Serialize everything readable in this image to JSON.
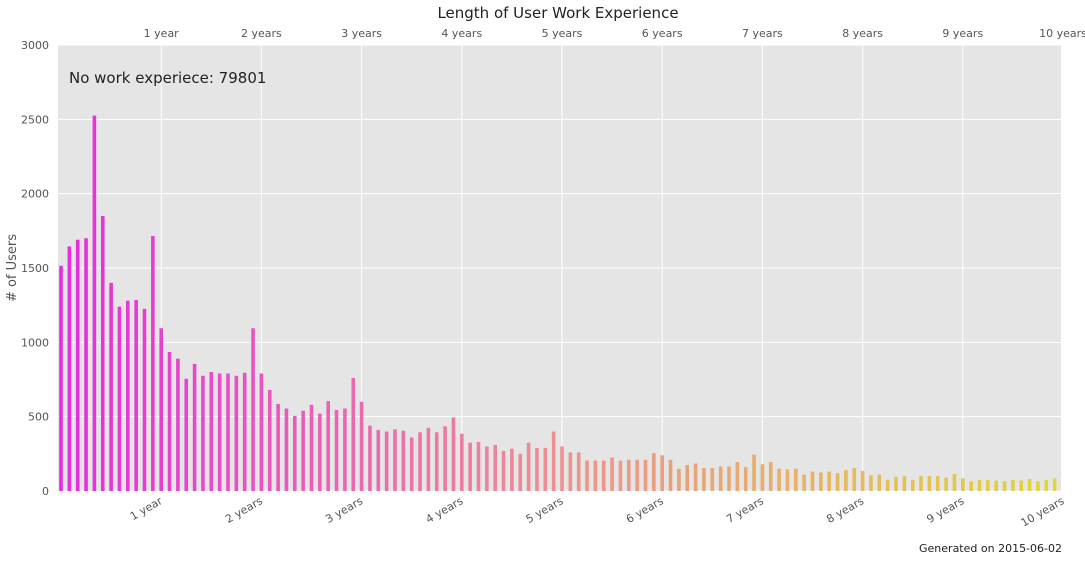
{
  "chart_data": {
    "type": "bar",
    "title": "Length of User Work Experience",
    "ylabel": "# of Users",
    "xlabel": "",
    "ylim": [
      0,
      3000
    ],
    "yticks": [
      0,
      500,
      1000,
      1500,
      2000,
      2500,
      3000
    ],
    "xlim_months": [
      0,
      120
    ],
    "major_ticks": [
      {
        "month": 12,
        "label": "1 year"
      },
      {
        "month": 24,
        "label": "2 years"
      },
      {
        "month": 36,
        "label": "3 years"
      },
      {
        "month": 48,
        "label": "4 years"
      },
      {
        "month": 60,
        "label": "5 years"
      },
      {
        "month": 72,
        "label": "6 years"
      },
      {
        "month": 84,
        "label": "7 years"
      },
      {
        "month": 96,
        "label": "8 years"
      },
      {
        "month": 108,
        "label": "9 years"
      },
      {
        "month": 120,
        "label": "10 years"
      }
    ],
    "values": [
      1515,
      1645,
      1690,
      1700,
      2525,
      1850,
      1400,
      1240,
      1280,
      1285,
      1225,
      1715,
      1095,
      935,
      890,
      755,
      855,
      775,
      800,
      790,
      790,
      775,
      795,
      1095,
      790,
      680,
      585,
      555,
      505,
      540,
      580,
      520,
      605,
      545,
      555,
      760,
      600,
      440,
      410,
      400,
      415,
      405,
      360,
      395,
      425,
      395,
      435,
      495,
      385,
      325,
      330,
      300,
      310,
      270,
      285,
      250,
      325,
      290,
      290,
      400,
      300,
      260,
      260,
      205,
      205,
      205,
      225,
      205,
      210,
      210,
      210,
      255,
      240,
      210,
      150,
      175,
      185,
      155,
      155,
      165,
      165,
      195,
      160,
      245,
      180,
      195,
      150,
      145,
      150,
      110,
      130,
      125,
      130,
      120,
      140,
      155,
      135,
      105,
      110,
      75,
      95,
      100,
      75,
      100,
      100,
      100,
      90,
      115,
      85,
      65,
      75,
      75,
      70,
      65,
      75,
      70,
      80,
      65,
      75,
      85
    ],
    "colors": {
      "start": "#e52ce0",
      "mid": "#ee9090",
      "end": "#e0d63a",
      "plot_bg": "#e5e5e5",
      "grid": "#ffffff"
    },
    "annotation": "No work experiece: 79801",
    "footer": "Generated on 2015-06-02",
    "grid": true
  }
}
